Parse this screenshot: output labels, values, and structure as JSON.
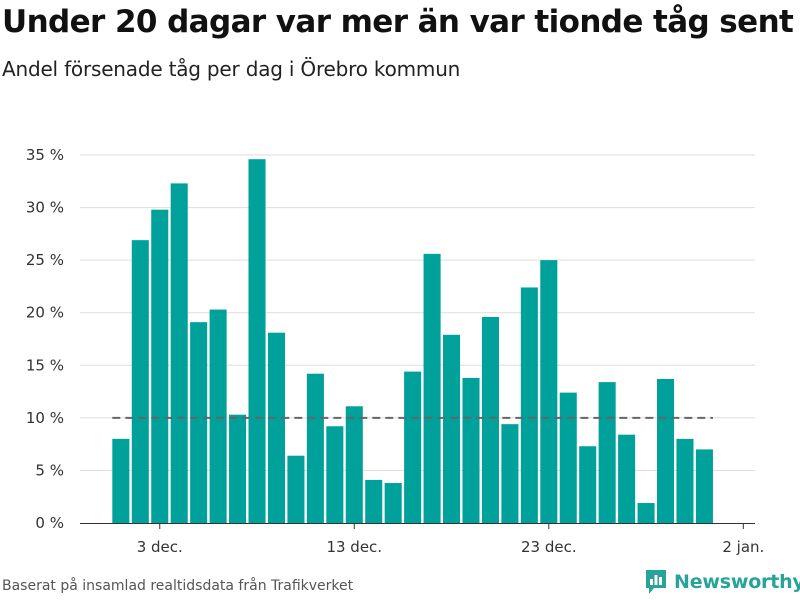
{
  "title": "Under 20 dagar var mer än var tionde tåg sent",
  "subtitle": "Andel försenade tåg per dag i Örebro kommun",
  "source": "Baserat på insamlad realtidsdata från Trafikverket",
  "brand": "Newsworthy",
  "colors": {
    "bar": "#00a19a",
    "grid": "#dddddd",
    "reference": "#666666",
    "axis": "#333333",
    "brand": "#27a39a"
  },
  "chart_data": {
    "type": "bar",
    "x": [
      "2020-12-01",
      "2020-12-02",
      "2020-12-03",
      "2020-12-04",
      "2020-12-05",
      "2020-12-06",
      "2020-12-07",
      "2020-12-08",
      "2020-12-09",
      "2020-12-10",
      "2020-12-11",
      "2020-12-12",
      "2020-12-13",
      "2020-12-14",
      "2020-12-15",
      "2020-12-16",
      "2020-12-17",
      "2020-12-18",
      "2020-12-19",
      "2020-12-20",
      "2020-12-21",
      "2020-12-22",
      "2020-12-23",
      "2020-12-24",
      "2020-12-25",
      "2020-12-26",
      "2020-12-27",
      "2020-12-28",
      "2020-12-29",
      "2020-12-30",
      "2020-12-31"
    ],
    "values": [
      8.0,
      26.9,
      29.8,
      32.3,
      19.1,
      20.3,
      10.3,
      34.6,
      18.1,
      6.4,
      14.2,
      9.2,
      11.1,
      4.1,
      3.8,
      14.4,
      25.6,
      17.9,
      13.8,
      19.6,
      9.4,
      22.4,
      25.0,
      12.4,
      7.3,
      13.4,
      8.4,
      1.9,
      13.7,
      8.0,
      7.0
    ],
    "reference_line": 10,
    "yticks": [
      0,
      5,
      10,
      15,
      20,
      25,
      30,
      35
    ],
    "ytick_labels": [
      "0 %",
      "5 %",
      "10 %",
      "15 %",
      "20 %",
      "25 %",
      "30 %",
      "35 %"
    ],
    "xticks": [
      "2020-12-03",
      "2020-12-13",
      "2020-12-23",
      "2021-01-02"
    ],
    "xtick_labels": [
      "3 dec.",
      "13 dec.",
      "23 dec.",
      "2 jan."
    ],
    "ylim": [
      0,
      35
    ],
    "grid": true
  }
}
